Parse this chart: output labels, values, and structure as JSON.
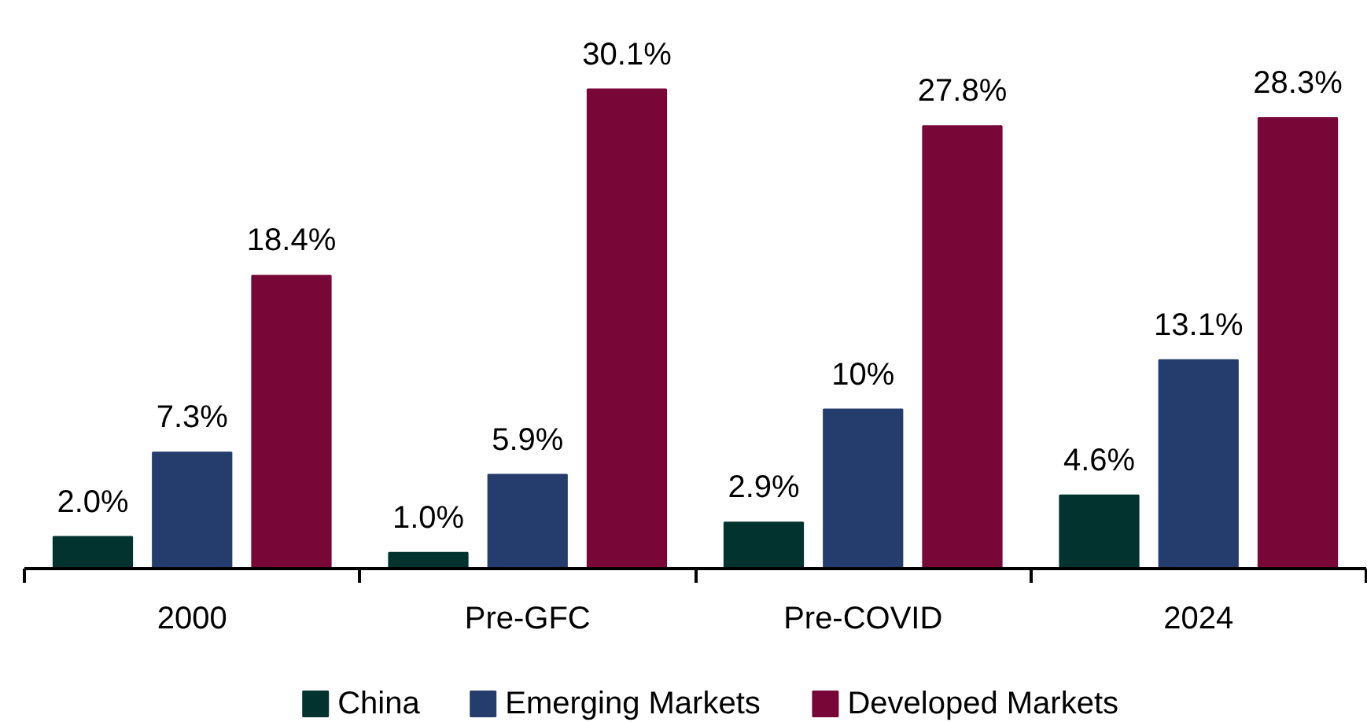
{
  "chart_data": {
    "type": "bar",
    "categories": [
      "2000",
      "Pre-GFC",
      "Pre-COVID",
      "2024"
    ],
    "series": [
      {
        "name": "China",
        "color": "#03332f",
        "values": [
          2.0,
          1.0,
          2.9,
          4.6
        ],
        "value_labels": [
          "2.0%",
          "1.0%",
          "2.9%",
          "4.6%"
        ]
      },
      {
        "name": "Emerging Markets",
        "color": "#253d6c",
        "values": [
          7.3,
          5.9,
          10,
          13.1
        ],
        "value_labels": [
          "7.3%",
          "5.9%",
          "10%",
          "13.1%"
        ]
      },
      {
        "name": "Developed Markets",
        "color": "#780637",
        "values": [
          18.4,
          30.1,
          27.8,
          28.3
        ],
        "value_labels": [
          "18.4%",
          "30.1%",
          "27.8%",
          "28.3%"
        ]
      }
    ],
    "tick_labels": "x",
    "legend": "bottom"
  }
}
